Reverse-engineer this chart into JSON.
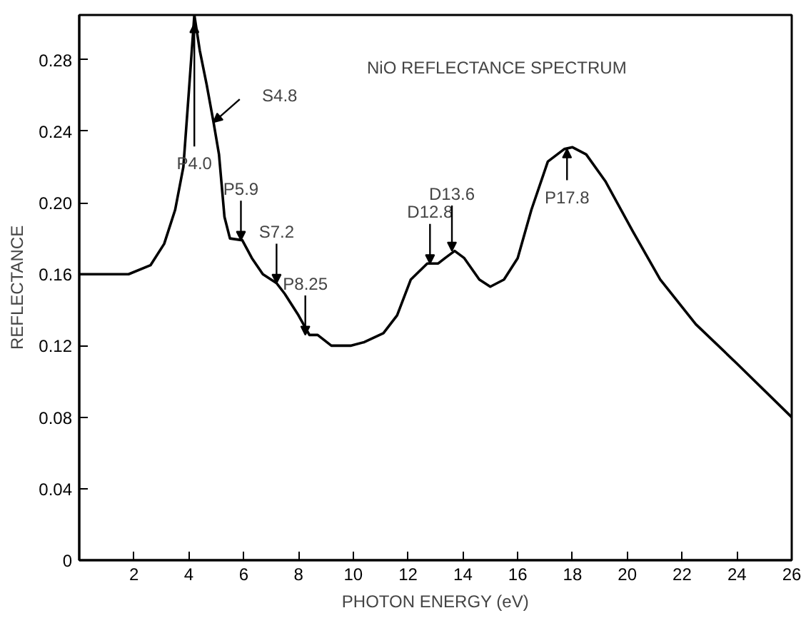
{
  "chart_data": {
    "type": "line",
    "title": "NiO REFLECTANCE SPECTRUM",
    "xlabel": "PHOTON ENERGY (eV)",
    "ylabel": "REFLECTANCE",
    "xlim": [
      0,
      26
    ],
    "ylim": [
      0,
      0.305
    ],
    "xticks": [
      2,
      4,
      6,
      8,
      10,
      12,
      14,
      16,
      18,
      20,
      22,
      24,
      26
    ],
    "yticks": [
      0,
      0.04,
      0.08,
      0.12,
      0.16,
      {
        "value": 0.2,
        "label": "0.20"
      },
      0.24,
      0.28
    ],
    "grid": false,
    "marker": "none",
    "line_style": "solid",
    "series": [
      {
        "color": "#000000",
        "x": [
          0,
          1.8,
          2.6,
          3.1,
          3.5,
          3.8,
          4.0,
          4.2,
          4.4,
          4.65,
          4.9,
          5.1,
          5.3,
          5.5,
          5.95,
          6.3,
          6.7,
          7.2,
          7.5,
          8.0,
          8.4,
          8.7,
          9.2,
          9.9,
          10.4,
          11.1,
          11.6,
          12.1,
          12.7,
          13.1,
          13.35,
          13.7,
          14.05,
          14.6,
          15.0,
          15.5,
          16.0,
          16.5,
          17.1,
          17.7,
          18.0,
          18.5,
          19.2,
          20.2,
          21.2,
          22.5,
          24.0,
          26
        ],
        "values": [
          0.16,
          0.16,
          0.165,
          0.177,
          0.196,
          0.22,
          0.262,
          0.305,
          0.285,
          0.266,
          0.245,
          0.227,
          0.192,
          0.18,
          0.179,
          0.169,
          0.16,
          0.155,
          0.149,
          0.137,
          0.126,
          0.126,
          0.12,
          0.12,
          0.122,
          0.127,
          0.137,
          0.157,
          0.166,
          0.166,
          0.169,
          0.173,
          0.169,
          0.157,
          0.153,
          0.157,
          0.169,
          0.196,
          0.223,
          0.23,
          0.231,
          0.227,
          0.212,
          0.184,
          0.157,
          0.132,
          0.11,
          0.08
        ]
      }
    ],
    "annotations": [
      {
        "text": "P4.0",
        "x": 4.2,
        "y": 0.3
      },
      {
        "text": "S4.8",
        "x": 4.9,
        "y": 0.245
      },
      {
        "text": "P5.9",
        "x": 5.9,
        "y": 0.179
      },
      {
        "text": "S7.2",
        "x": 7.2,
        "y": 0.155
      },
      {
        "text": "P8.25",
        "x": 8.25,
        "y": 0.126
      },
      {
        "text": "D12.8",
        "x": 12.8,
        "y": 0.166
      },
      {
        "text": "D13.6",
        "x": 13.6,
        "y": 0.173
      },
      {
        "text": "P17.8",
        "x": 17.8,
        "y": 0.23
      }
    ]
  }
}
